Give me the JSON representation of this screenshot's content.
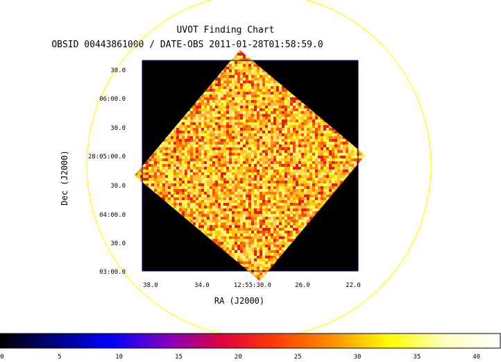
{
  "chart_data": {
    "type": "heatmap",
    "title": "UVOT Finding Chart",
    "subtitle": "OBSID 00443861000 / DATE-OBS 2011-01-28T01:58:59.0",
    "xlabel": "RA (J2000)",
    "ylabel": "Dec (J2000)",
    "x_ticks": [
      "38.0",
      "34.0",
      "12:55:30.0",
      "26.0",
      "22.0"
    ],
    "y_ticks": [
      "30.0",
      "06:00.0",
      "30.0",
      "28:05:00.0",
      "30.0",
      "04:00.0",
      "30.0",
      "03:00.0"
    ],
    "colorbar": {
      "ticks": [
        "0",
        "5",
        "10",
        "15",
        "20",
        "25",
        "30",
        "35",
        "40"
      ],
      "range": [
        0,
        42
      ],
      "colormap": "heat",
      "stops": [
        "#000000",
        "#000080",
        "#0000ff",
        "#8000c0",
        "#e00040",
        "#ff4000",
        "#ff9000",
        "#ffff00",
        "#ffffc0",
        "#ffffff"
      ]
    },
    "image": {
      "background_color": "#000000",
      "frame_color": "#000080",
      "exposure_rotation_deg": 40,
      "exposure_pixel_palette": [
        "#ffff40",
        "#ffe060",
        "#ffc040",
        "#ffa020",
        "#ff8000",
        "#ff5000",
        "#e02010",
        "#fff080",
        "#ffd000"
      ]
    },
    "overlay": {
      "shape": "circle",
      "color": "#ffff00"
    }
  }
}
